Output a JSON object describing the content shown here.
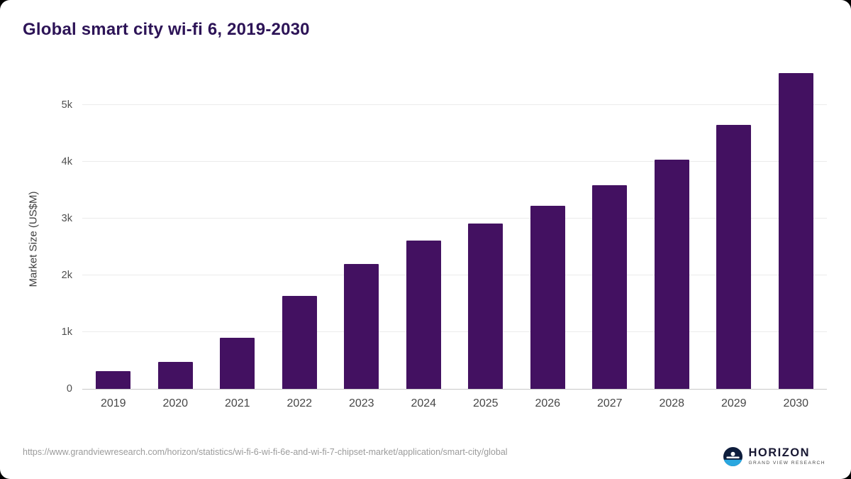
{
  "title": "Global smart city wi-fi 6, 2019-2030",
  "chart_data": {
    "type": "bar",
    "title": "Global smart city wi-fi 6, 2019-2030",
    "categories": [
      "2019",
      "2020",
      "2021",
      "2022",
      "2023",
      "2024",
      "2025",
      "2026",
      "2027",
      "2028",
      "2029",
      "2030"
    ],
    "values": [
      310,
      470,
      900,
      1640,
      2200,
      2610,
      2910,
      3230,
      3590,
      4040,
      4650,
      5560
    ],
    "xlabel": "",
    "ylabel": "Market Size (US$M)",
    "ylim": [
      0,
      5650
    ],
    "ytick_values": [
      0,
      1000,
      2000,
      3000,
      4000,
      5000
    ],
    "ytick_labels": [
      "0",
      "1k",
      "2k",
      "3k",
      "4k",
      "5k"
    ],
    "grid": true,
    "legend_position": "none",
    "bar_color": "#431161"
  },
  "colors": {
    "title_text": "#2d1457",
    "bar": "#431161",
    "gridline": "#ebebeb",
    "axis_text": "#4f4f4f",
    "footer_text": "#9b9b9b",
    "logo_navy": "#0e1d3c",
    "logo_blue": "#2aa7df"
  },
  "footer": {
    "source_url": "https://www.grandviewresearch.com/horizon/statistics/wi-fi-6-wi-fi-6e-and-wi-fi-7-chipset-market/application/smart-city/global",
    "logo_name": "HORIZON",
    "logo_subtext": "GRAND VIEW RESEARCH"
  }
}
